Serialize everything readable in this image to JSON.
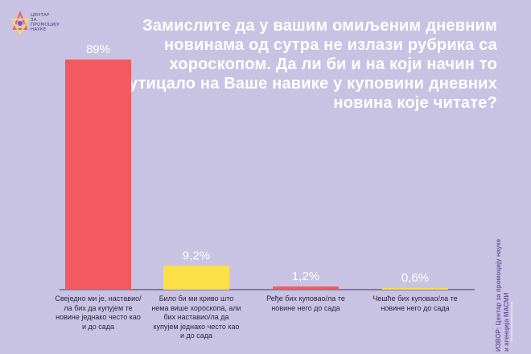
{
  "logo": {
    "text_lines": [
      "ЦЕНТАР",
      "ЗА",
      "ПРОМОЦИЈУ",
      "НАУКЕ"
    ]
  },
  "title": "Замислите да у вашим омиљеним дневним новинама од сутра не излази рубрика са хороскопом. Да ли би и на који начин то утицало на Ваше навике у куповини дневних новина које читате?",
  "chart_data": {
    "type": "bar",
    "categories": [
      "Свеједно ми је, наставио/ла бих да купујем те новине једнако често као и до сада",
      "Било би ми криво што нема више хороскопа, али бих наставио/ла да купујем једнако често као и до сада",
      "Ређе бих куповао/ла те новине него до сада",
      "Чешће бих куповао/ла те новине него до сада"
    ],
    "values": [
      89,
      9.2,
      1.2,
      0.6
    ],
    "value_labels": [
      "89%",
      "9,2%",
      "1,2%",
      "0,6%"
    ],
    "colors": [
      "#f25a5f",
      "#fde047",
      "#f25a5f",
      "#fde047"
    ],
    "ylim": [
      0,
      89
    ],
    "grid": false
  },
  "source": {
    "line1": "ИЗВОР: Центар за промоцију науке",
    "line2": "и агенција МАСМИ"
  }
}
